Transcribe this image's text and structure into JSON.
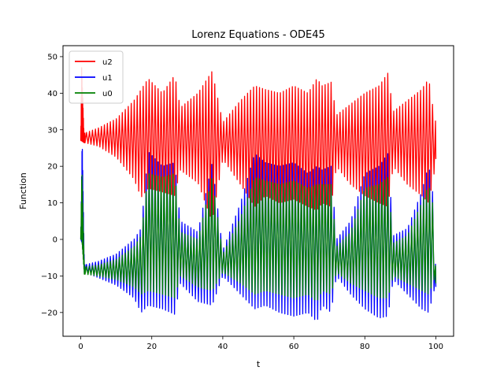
{
  "chart_data": {
    "type": "line",
    "title": "Lorenz Equations - ODE45",
    "xlabel": "t",
    "ylabel": "Function",
    "xlim": [
      -5,
      105
    ],
    "ylim": [
      -26.5,
      53
    ],
    "xticks": [
      0,
      20,
      40,
      60,
      80,
      100
    ],
    "yticks": [
      -20,
      -10,
      0,
      10,
      20,
      30,
      40,
      50
    ],
    "grid": false,
    "legend_position": "top-left",
    "t_range": [
      0,
      100
    ],
    "series": [
      {
        "name": "u2",
        "color": "#ff0000",
        "center": 25,
        "samples": [
          {
            "t": 0.0,
            "min": 27.0,
            "max": 27.0
          },
          {
            "t": 0.25,
            "min": 27.0,
            "max": 47.0
          },
          {
            "t": 0.9,
            "min": 26.5,
            "max": 29.0
          },
          {
            "t": 5.0,
            "min": 25.5,
            "max": 30.5
          },
          {
            "t": 10.0,
            "min": 22.5,
            "max": 33.0
          },
          {
            "t": 15.0,
            "min": 16.5,
            "max": 38.0
          },
          {
            "t": 17.0,
            "min": 11.5,
            "max": 41.0
          },
          {
            "t": 19.0,
            "min": 14.0,
            "max": 44.0
          },
          {
            "t": 23.0,
            "min": 13.0,
            "max": 40.0
          },
          {
            "t": 26.5,
            "min": 12.0,
            "max": 45.0
          },
          {
            "t": 28.0,
            "min": 19.0,
            "max": 36.0
          },
          {
            "t": 33.0,
            "min": 15.5,
            "max": 40.0
          },
          {
            "t": 37.0,
            "min": 5.0,
            "max": 46.0
          },
          {
            "t": 40.0,
            "min": 22.0,
            "max": 32.0
          },
          {
            "t": 45.0,
            "min": 15.0,
            "max": 38.0
          },
          {
            "t": 49.0,
            "min": 9.0,
            "max": 42.0
          },
          {
            "t": 52.0,
            "min": 12.0,
            "max": 41.0
          },
          {
            "t": 56.0,
            "min": 10.0,
            "max": 40.0
          },
          {
            "t": 60.0,
            "min": 11.0,
            "max": 42.0
          },
          {
            "t": 64.0,
            "min": 9.0,
            "max": 40.0
          },
          {
            "t": 66.5,
            "min": 8.0,
            "max": 44.0
          },
          {
            "t": 68.0,
            "min": 10.0,
            "max": 42.0
          },
          {
            "t": 70.5,
            "min": 9.0,
            "max": 43.0
          },
          {
            "t": 72.0,
            "min": 20.0,
            "max": 34.0
          },
          {
            "t": 76.0,
            "min": 15.0,
            "max": 37.0
          },
          {
            "t": 80.0,
            "min": 12.0,
            "max": 40.0
          },
          {
            "t": 84.0,
            "min": 10.0,
            "max": 42.0
          },
          {
            "t": 86.5,
            "min": 9.0,
            "max": 45.5
          },
          {
            "t": 88.0,
            "min": 20.0,
            "max": 35.0
          },
          {
            "t": 92.0,
            "min": 15.0,
            "max": 38.0
          },
          {
            "t": 96.0,
            "min": 12.0,
            "max": 41.0
          },
          {
            "t": 98.0,
            "min": 10.0,
            "max": 44.0
          },
          {
            "t": 99.5,
            "min": 18.0,
            "max": 34.0
          },
          {
            "t": 100.0,
            "min": 22.0,
            "max": 32.0
          }
        ]
      },
      {
        "name": "u1",
        "color": "#0000ff",
        "center": 0,
        "samples": [
          {
            "t": 0.0,
            "min": 0.0,
            "max": 0.0
          },
          {
            "t": 0.4,
            "min": -1.0,
            "max": 27.5
          },
          {
            "t": 1.0,
            "min": -9.0,
            "max": -7.0
          },
          {
            "t": 5.0,
            "min": -10.5,
            "max": -6.0
          },
          {
            "t": 10.0,
            "min": -12.5,
            "max": -4.0
          },
          {
            "t": 15.0,
            "min": -16.0,
            "max": 0.0
          },
          {
            "t": 17.0,
            "min": -20.0,
            "max": 3.0
          },
          {
            "t": 19.0,
            "min": -18.0,
            "max": 24.0
          },
          {
            "t": 23.0,
            "min": -19.0,
            "max": 20.0
          },
          {
            "t": 26.5,
            "min": -20.5,
            "max": 21.0
          },
          {
            "t": 28.0,
            "min": -12.0,
            "max": 5.0
          },
          {
            "t": 33.0,
            "min": -17.0,
            "max": 2.0
          },
          {
            "t": 37.0,
            "min": -18.0,
            "max": 21.0
          },
          {
            "t": 40.0,
            "min": -10.0,
            "max": -3.0
          },
          {
            "t": 45.0,
            "min": -15.0,
            "max": 10.0
          },
          {
            "t": 49.0,
            "min": -19.0,
            "max": 23.5
          },
          {
            "t": 52.0,
            "min": -18.0,
            "max": 21.0
          },
          {
            "t": 56.0,
            "min": -20.0,
            "max": 20.0
          },
          {
            "t": 60.0,
            "min": -21.0,
            "max": 21.0
          },
          {
            "t": 64.0,
            "min": -20.0,
            "max": 18.0
          },
          {
            "t": 66.5,
            "min": -22.5,
            "max": 20.0
          },
          {
            "t": 68.0,
            "min": -18.0,
            "max": 19.0
          },
          {
            "t": 70.5,
            "min": -20.0,
            "max": 20.0
          },
          {
            "t": 72.0,
            "min": -10.0,
            "max": 0.0
          },
          {
            "t": 76.0,
            "min": -15.0,
            "max": 5.0
          },
          {
            "t": 80.0,
            "min": -19.0,
            "max": 18.0
          },
          {
            "t": 84.0,
            "min": -21.5,
            "max": 20.0
          },
          {
            "t": 86.5,
            "min": -21.0,
            "max": 23.5
          },
          {
            "t": 88.0,
            "min": -11.0,
            "max": 1.0
          },
          {
            "t": 92.0,
            "min": -15.0,
            "max": 3.0
          },
          {
            "t": 96.0,
            "min": -19.0,
            "max": 13.0
          },
          {
            "t": 98.0,
            "min": -20.0,
            "max": 20.5
          },
          {
            "t": 99.5,
            "min": -14.0,
            "max": 10.0
          },
          {
            "t": 100.0,
            "min": -13.0,
            "max": -11.0
          }
        ]
      },
      {
        "name": "u0",
        "color": "#008000",
        "center": 0,
        "samples": [
          {
            "t": 0.0,
            "min": 0.0,
            "max": 0.0
          },
          {
            "t": 0.3,
            "min": 0.0,
            "max": 19.5
          },
          {
            "t": 1.0,
            "min": -9.5,
            "max": -7.5
          },
          {
            "t": 5.0,
            "min": -10.0,
            "max": -7.0
          },
          {
            "t": 10.0,
            "min": -11.0,
            "max": -5.5
          },
          {
            "t": 15.0,
            "min": -13.0,
            "max": -2.0
          },
          {
            "t": 17.0,
            "min": -15.0,
            "max": 1.0
          },
          {
            "t": 19.0,
            "min": -14.0,
            "max": 18.0
          },
          {
            "t": 23.0,
            "min": -15.0,
            "max": 17.0
          },
          {
            "t": 26.5,
            "min": -16.0,
            "max": 18.0
          },
          {
            "t": 28.0,
            "min": -10.0,
            "max": 2.0
          },
          {
            "t": 33.0,
            "min": -13.0,
            "max": 0.0
          },
          {
            "t": 37.0,
            "min": -14.0,
            "max": 17.0
          },
          {
            "t": 40.0,
            "min": -9.0,
            "max": -4.0
          },
          {
            "t": 45.0,
            "min": -12.0,
            "max": 6.0
          },
          {
            "t": 49.0,
            "min": -15.0,
            "max": 17.0
          },
          {
            "t": 52.0,
            "min": -14.0,
            "max": 16.0
          },
          {
            "t": 56.0,
            "min": -15.0,
            "max": 15.0
          },
          {
            "t": 60.0,
            "min": -16.0,
            "max": 16.0
          },
          {
            "t": 64.0,
            "min": -15.0,
            "max": 14.0
          },
          {
            "t": 66.5,
            "min": -17.0,
            "max": 15.0
          },
          {
            "t": 68.0,
            "min": -14.0,
            "max": 15.0
          },
          {
            "t": 70.5,
            "min": -15.0,
            "max": 15.0
          },
          {
            "t": 72.0,
            "min": -9.0,
            "max": -2.0
          },
          {
            "t": 76.0,
            "min": -12.0,
            "max": 2.0
          },
          {
            "t": 80.0,
            "min": -14.0,
            "max": 14.0
          },
          {
            "t": 84.0,
            "min": -16.0,
            "max": 15.0
          },
          {
            "t": 86.5,
            "min": -16.0,
            "max": 17.0
          },
          {
            "t": 88.0,
            "min": -10.0,
            "max": -1.0
          },
          {
            "t": 92.0,
            "min": -12.0,
            "max": 1.0
          },
          {
            "t": 96.0,
            "min": -14.0,
            "max": 10.0
          },
          {
            "t": 98.0,
            "min": -15.0,
            "max": 15.0
          },
          {
            "t": 99.5,
            "min": -11.0,
            "max": 8.0
          },
          {
            "t": 100.0,
            "min": -12.0,
            "max": -11.0
          }
        ]
      }
    ]
  }
}
